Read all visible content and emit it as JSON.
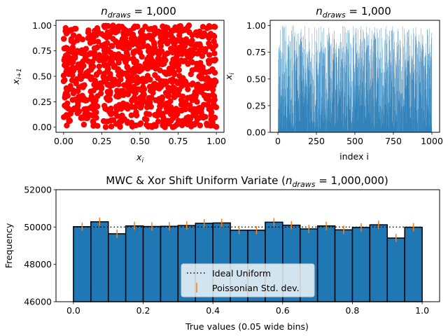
{
  "chart_data": [
    {
      "type": "scatter",
      "title_main": "n",
      "title_sub": "draws",
      "title_rest": " = 1,000",
      "xlabel_main": "x",
      "xlabel_sub": "i",
      "ylabel_main": "x",
      "ylabel_sub": "i+1",
      "xlim": [
        -0.05,
        1.05
      ],
      "ylim": [
        -0.05,
        1.05
      ],
      "xticks": [
        0.0,
        0.25,
        0.5,
        0.75,
        1.0
      ],
      "xtick_labels": [
        "0.00",
        "0.25",
        "0.50",
        "0.75",
        "1.00"
      ],
      "yticks": [
        0.0,
        0.25,
        0.5,
        0.75,
        1.0
      ],
      "ytick_labels": [
        "0.00",
        "0.25",
        "0.50",
        "0.75",
        "1.00"
      ],
      "point_color": "#ff0000",
      "n_points": 1000
    },
    {
      "type": "bar",
      "title_main": "n",
      "title_sub": "draws",
      "title_rest": " = 1,000",
      "xlabel": "index i",
      "ylabel_main": "x",
      "ylabel_sub": "i",
      "xlim": [
        -50,
        1050
      ],
      "ylim": [
        0,
        1.05
      ],
      "xticks": [
        0,
        250,
        500,
        750,
        1000
      ],
      "xtick_labels": [
        "0",
        "250",
        "500",
        "750",
        "1000"
      ],
      "yticks": [
        0.0,
        0.25,
        0.5,
        0.75,
        1.0
      ],
      "ytick_labels": [
        "0.00",
        "0.25",
        "0.50",
        "0.75",
        "1.00"
      ],
      "bar_color": "#1f77b4",
      "n_points": 1000
    },
    {
      "type": "bar",
      "title_pre": "MWC & Xor Shift Uniform Variate (",
      "title_main": "n",
      "title_sub": "draws",
      "title_rest": " = 1,000,000)",
      "xlabel": "True values (0.05 wide bins)",
      "ylabel": "Frequency",
      "xlim": [
        -0.05,
        1.05
      ],
      "ylim": [
        46000,
        52000
      ],
      "xticks": [
        0.0,
        0.2,
        0.4,
        0.6,
        0.8,
        1.0
      ],
      "xtick_labels": [
        "0.0",
        "0.2",
        "0.4",
        "0.6",
        "0.8",
        "1.0"
      ],
      "yticks": [
        46000,
        48000,
        50000,
        52000
      ],
      "ytick_labels": [
        "46000",
        "48000",
        "50000",
        "52000"
      ],
      "bin_width": 0.05,
      "bin_edges_start": 0.0,
      "values": [
        50020,
        50280,
        49640,
        50060,
        50030,
        50040,
        50080,
        50200,
        50220,
        49830,
        49830,
        50260,
        50100,
        49900,
        50060,
        49850,
        49980,
        50120,
        49410,
        49990
      ],
      "ideal_value": 50000,
      "error": 224,
      "bar_color": "#1f77b4",
      "err_color": "#ff7f0e",
      "legend": {
        "placement": "lower-center",
        "entries": [
          "Ideal Uniform",
          "Poissonian Std. dev."
        ]
      }
    }
  ]
}
